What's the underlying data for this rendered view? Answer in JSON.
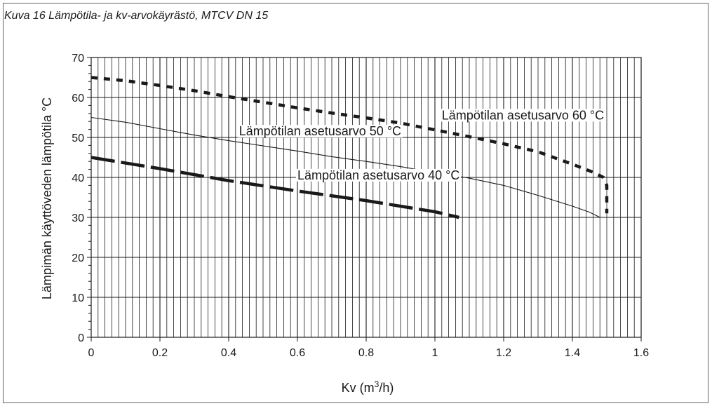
{
  "caption": "Kuva 16 Lämpötila- ja kv-arvokäyrästö, MTCV DN 15",
  "chart_data": {
    "type": "line",
    "title": "",
    "xlabel_main": "Kv (m",
    "xlabel_sup": "3",
    "xlabel_tail": "/h)",
    "ylabel": "Lämpimän käyttöveden lämpötila °C",
    "xlim": [
      0,
      1.6
    ],
    "ylim": [
      0,
      70
    ],
    "x_ticks": [
      "0",
      "0.2",
      "0.4",
      "0.6",
      "0.8",
      "1",
      "1.2",
      "1.4",
      "1.6"
    ],
    "y_ticks": [
      "0",
      "10",
      "20",
      "30",
      "40",
      "50",
      "60",
      "70"
    ],
    "grid": true,
    "series": [
      {
        "name": "Lämpötilan asetusarvo 60 °C",
        "style": "short-dash-bold",
        "x": [
          0,
          0.1,
          0.2,
          0.3,
          0.4,
          0.5,
          0.6,
          0.7,
          0.8,
          0.9,
          1.0,
          1.1,
          1.2,
          1.3,
          1.4,
          1.46,
          1.49,
          1.5,
          1.5
        ],
        "y": [
          65,
          64.2,
          63,
          61.7,
          60.2,
          58.8,
          57.4,
          56.1,
          54.9,
          53.6,
          51.9,
          50.2,
          48.4,
          46.4,
          43.3,
          41.3,
          40,
          38,
          31
        ]
      },
      {
        "name": "Lämpötilan asetusarvo 50 °C",
        "style": "solid-thin",
        "x": [
          0,
          0.1,
          0.2,
          0.3,
          0.4,
          0.5,
          0.6,
          0.7,
          0.8,
          0.9,
          1.0,
          1.1,
          1.2,
          1.3,
          1.4,
          1.45,
          1.48
        ],
        "y": [
          55,
          53.8,
          52.2,
          50.6,
          49.2,
          47.9,
          46.6,
          45.2,
          44,
          42.7,
          41.2,
          39.8,
          38,
          35.5,
          32.8,
          31.3,
          30
        ]
      },
      {
        "name": "Lämpötilan asetusarvo 40 °C",
        "style": "long-dash-bold",
        "x": [
          0,
          0.2,
          0.4,
          0.6,
          0.8,
          1.0,
          1.07
        ],
        "y": [
          45,
          42.2,
          39.2,
          36.6,
          34.2,
          31.4,
          30
        ]
      }
    ],
    "annotations": [
      {
        "text": "Lämpötilan asetusarvo 60 °C",
        "x": 1.02,
        "y": 54.5,
        "series": 0
      },
      {
        "text": "Lämpötilan asetusarvo 50 °C",
        "x": 0.43,
        "y": 50.5,
        "series": 1
      },
      {
        "text": "Lämpötilan asetusarvo 40 °C",
        "x": 0.6,
        "y": 39.5,
        "series": 2
      }
    ]
  }
}
